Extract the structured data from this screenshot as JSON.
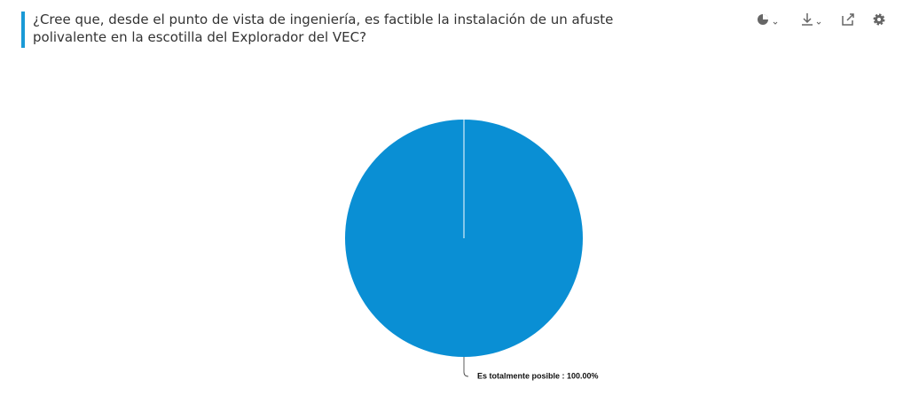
{
  "chart_data": {
    "type": "pie",
    "title": "¿Cree que, desde el punto de vista de ingeniería, es factible la instalación de un afuste polivalente en la escotilla del Explorador del VEC?",
    "values": [
      100
    ],
    "value_labels": [
      "Es totalmente posible : 100.00%"
    ],
    "colors": [
      "#0a8fd4"
    ]
  }
}
